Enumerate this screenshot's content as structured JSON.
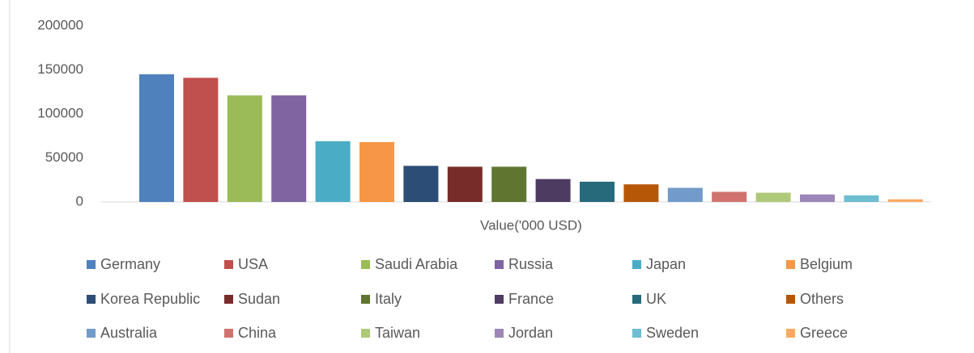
{
  "chart_data": {
    "type": "bar",
    "categories": [
      "Value('000 USD)"
    ],
    "series": [
      {
        "name": "Germany",
        "color": "#4f81bd",
        "values": [
          145000
        ]
      },
      {
        "name": "USA",
        "color": "#c0504d",
        "values": [
          141000
        ]
      },
      {
        "name": "Saudi Arabia",
        "color": "#9bbb59",
        "values": [
          121000
        ]
      },
      {
        "name": "Russia",
        "color": "#8064a2",
        "values": [
          121000
        ]
      },
      {
        "name": "Japan",
        "color": "#4bacc6",
        "values": [
          69000
        ]
      },
      {
        "name": "Belgium",
        "color": "#f79646",
        "values": [
          68000
        ]
      },
      {
        "name": "Korea Republic",
        "color": "#2c4d75",
        "values": [
          41000
        ]
      },
      {
        "name": "Sudan",
        "color": "#772c2a",
        "values": [
          40000
        ]
      },
      {
        "name": "Italy",
        "color": "#5f7530",
        "values": [
          40000
        ]
      },
      {
        "name": "France",
        "color": "#4d3b62",
        "values": [
          26000
        ]
      },
      {
        "name": "UK",
        "color": "#276a7c",
        "values": [
          23000
        ]
      },
      {
        "name": "Others",
        "color": "#b65708",
        "values": [
          20000
        ]
      },
      {
        "name": "Australia",
        "color": "#729aca",
        "values": [
          16000
        ]
      },
      {
        "name": "China",
        "color": "#d0736f",
        "values": [
          11500
        ]
      },
      {
        "name": "Taiwan",
        "color": "#afc97a",
        "values": [
          10500
        ]
      },
      {
        "name": "Jordan",
        "color": "#9c86b8",
        "values": [
          8500
        ]
      },
      {
        "name": "Sweden",
        "color": "#6fbdd1",
        "values": [
          7500
        ]
      },
      {
        "name": "Greece",
        "color": "#f9a964",
        "values": [
          3000
        ]
      }
    ],
    "ylim": [
      0,
      200000
    ],
    "yticks": [
      0,
      50000,
      100000,
      150000,
      200000
    ],
    "grid": false
  }
}
